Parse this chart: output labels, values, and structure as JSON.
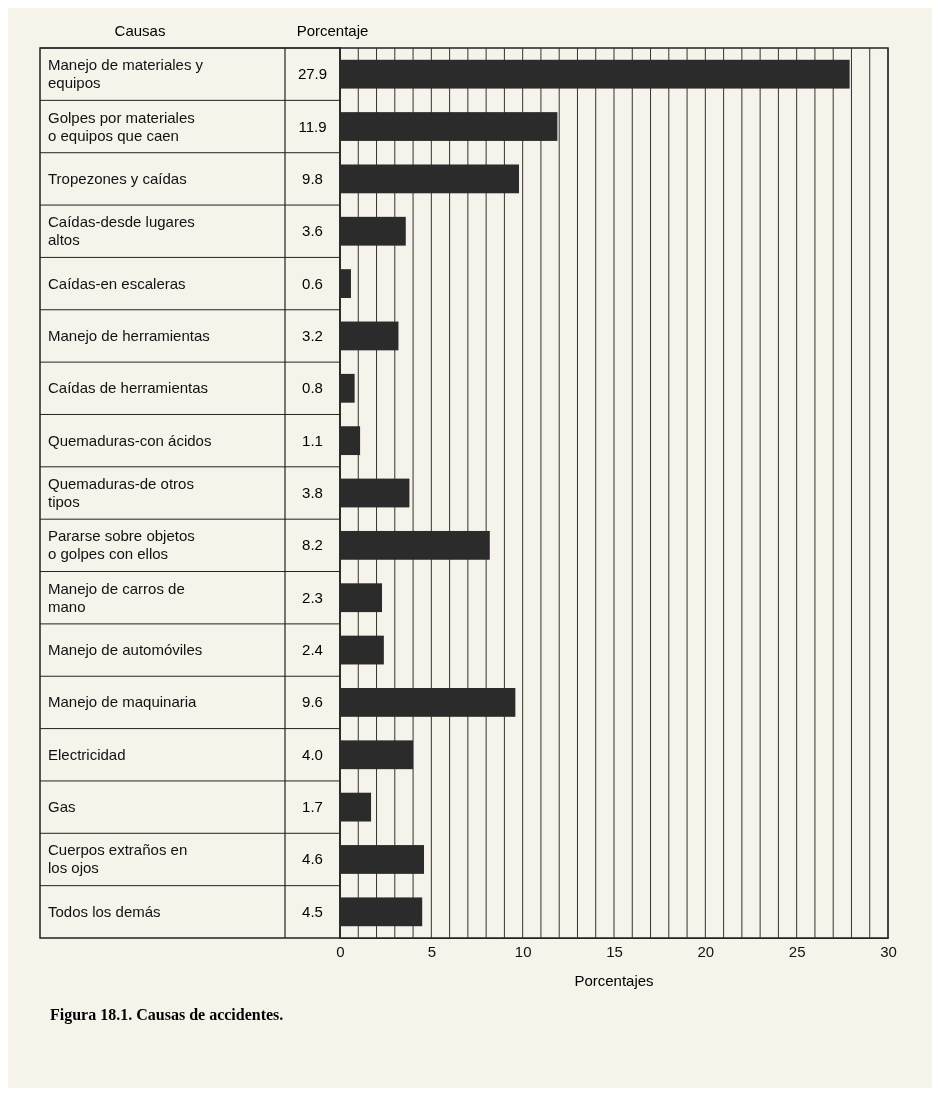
{
  "chart_data": {
    "type": "bar",
    "orientation": "horizontal",
    "categories": [
      "Manejo de materiales y equipos",
      "Golpes por materiales o equipos que caen",
      "Tropezones y caídas",
      "Caídas-desde lugares altos",
      "Caídas-en escaleras",
      "Manejo de herramientas",
      "Caídas de herramientas",
      "Quemaduras-con ácidos",
      "Quemaduras-de otros tipos",
      "Pararse sobre objetos o golpes con ellos",
      "Manejo de carros de mano",
      "Manejo de automóviles",
      "Manejo de maquinaria",
      "Electricidad",
      "Gas",
      "Cuerpos extraños en los ojos",
      "Todos los demás"
    ],
    "values": [
      27.9,
      11.9,
      9.8,
      3.6,
      0.6,
      3.2,
      0.8,
      1.1,
      3.8,
      8.2,
      2.3,
      2.4,
      9.6,
      4.0,
      1.7,
      4.6,
      4.5
    ],
    "value_labels": [
      "27.9",
      "11.9",
      "9.8",
      "3.6",
      "0.6",
      "3.2",
      "0.8",
      "1.1",
      "3.8",
      "8.2",
      "2.3",
      "2.4",
      "9.6",
      "4.0",
      "1.7",
      "4.6",
      "4.5"
    ],
    "color": "#2b2b2b",
    "xlim": [
      0,
      30
    ],
    "xticks": [
      0,
      {
        "value": 1,
        "label": null
      },
      {
        "value": 2,
        "label": null
      },
      {
        "value": 3,
        "label": null
      },
      {
        "value": 4,
        "label": null
      },
      5,
      {
        "value": 6,
        "label": null
      },
      {
        "value": 7,
        "label": null
      },
      {
        "value": 8,
        "label": null
      },
      {
        "value": 9,
        "label": null
      },
      10,
      {
        "value": 11,
        "label": null
      },
      {
        "value": 12,
        "label": null
      },
      {
        "value": 13,
        "label": null
      },
      {
        "value": 14,
        "label": null
      },
      15,
      {
        "value": 16,
        "label": null
      },
      {
        "value": 17,
        "label": null
      },
      {
        "value": 18,
        "label": null
      },
      {
        "value": 19,
        "label": null
      },
      20,
      {
        "value": 21,
        "label": null
      },
      {
        "value": 22,
        "label": null
      },
      {
        "value": 23,
        "label": null
      },
      {
        "value": 24,
        "label": null
      },
      25,
      {
        "value": 26,
        "label": null
      },
      {
        "value": 27,
        "label": null
      },
      {
        "value": 28,
        "label": null
      },
      {
        "value": 29,
        "label": null
      },
      30
    ],
    "grid": "x",
    "xlabel": "Porcentajes",
    "annotations": [
      "Causas",
      "Porcentaje",
      "Figura 18.1. Causas de accidentes."
    ]
  }
}
